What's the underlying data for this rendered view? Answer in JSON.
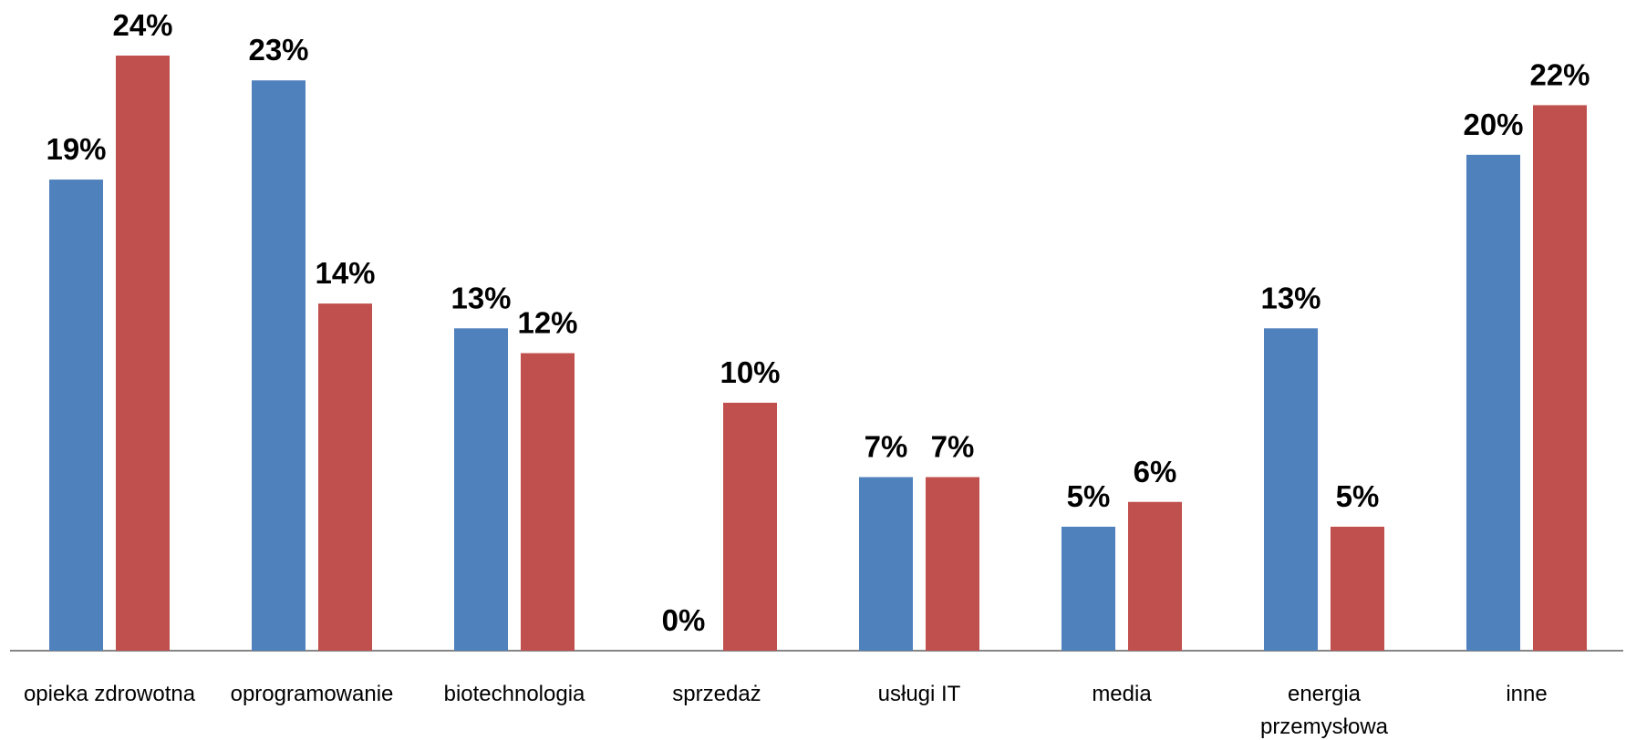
{
  "chart_data": {
    "type": "bar",
    "categories": [
      "opieka zdrowotna",
      "oprogramowanie",
      "biotechnologia",
      "sprzedaż",
      "usługi IT",
      "media",
      "energia przemysłowa",
      "inne"
    ],
    "series": [
      {
        "color": "#4f81bd",
        "values": [
          19,
          23,
          13,
          0,
          7,
          5,
          13,
          20
        ],
        "value_labels": [
          "19%",
          "23%",
          "13%",
          "0%",
          "7%",
          "5%",
          "13%",
          "20%"
        ]
      },
      {
        "color": "#c0504d",
        "values": [
          24,
          14,
          12,
          10,
          7,
          6,
          5,
          22
        ],
        "value_labels": [
          "24%",
          "14%",
          "12%",
          "10%",
          "7%",
          "6%",
          "5%",
          "22%"
        ]
      }
    ]
  }
}
